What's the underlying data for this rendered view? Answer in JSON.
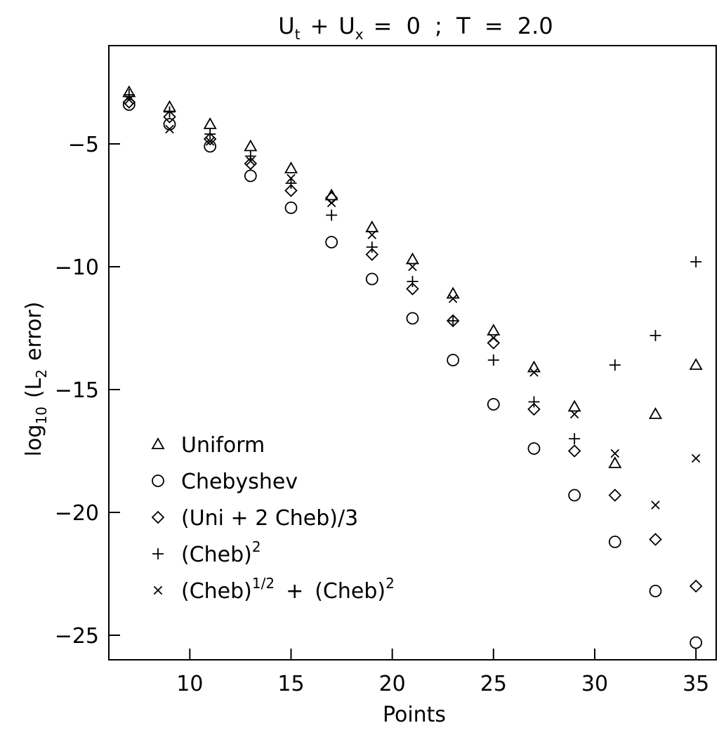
{
  "chart_data": {
    "type": "scatter",
    "title": {
      "u_main": "U",
      "u_sub_t": "t",
      "plus": "+",
      "u_main2": "U",
      "u_sub_x": "x",
      "rest": "= 0 ; T = 2.0"
    },
    "xlabel": "Points",
    "ylabel": {
      "pre": "log",
      "pre_sub": "10",
      "open": "(L",
      "l_sub": "2",
      "close": "error)"
    },
    "xlim": [
      6,
      36
    ],
    "ylim": [
      -26,
      -1
    ],
    "xticks": [
      10,
      15,
      20,
      25,
      30,
      35
    ],
    "yticks": [
      -5,
      -10,
      -15,
      -20,
      -25
    ],
    "x_tick_labels": [
      "10",
      "15",
      "20",
      "25",
      "30",
      "35"
    ],
    "y_tick_labels": [
      "-5",
      "-10",
      "-15",
      "-20",
      "-25"
    ],
    "legend_position": "bottom-left",
    "legend": {
      "uniform": "Uniform",
      "chebyshev": "Chebyshev",
      "mix": "(Uni + 2 Cheb)/3",
      "cheb2": {
        "a": "(Cheb)",
        "a_sup": "2"
      },
      "chebhalf": {
        "a": "(Cheb)",
        "a_sup": "1/2",
        "mid": "+",
        "b": "(Cheb)",
        "b_sup": "2"
      }
    },
    "x": [
      7,
      9,
      11,
      13,
      15,
      17,
      19,
      21,
      23,
      25,
      27,
      29,
      31,
      33,
      35
    ],
    "series": [
      {
        "key": "uniform",
        "marker": "triangle",
        "values": [
          -2.9,
          -3.5,
          -4.2,
          -5.1,
          -6.0,
          -7.1,
          -8.4,
          -9.7,
          -11.1,
          -12.6,
          -14.1,
          -15.7,
          -18.0,
          -16.0,
          -14.0
        ]
      },
      {
        "key": "chebyshev",
        "marker": "circle",
        "values": [
          -3.4,
          -4.2,
          -5.1,
          -6.3,
          -7.6,
          -9.0,
          -10.5,
          -12.1,
          -13.8,
          -15.6,
          -17.4,
          -19.3,
          -21.2,
          -23.2,
          -25.3
        ]
      },
      {
        "key": "mix",
        "marker": "diamond",
        "values": [
          -3.3,
          -3.9,
          -4.8,
          -5.8,
          -6.9,
          -7.2,
          -9.5,
          -10.9,
          -12.2,
          -13.1,
          -15.8,
          -17.5,
          -19.3,
          -21.1,
          -23.0
        ]
      },
      {
        "key": "cheb2",
        "marker": "plus",
        "values": [
          -3.0,
          -3.7,
          -4.6,
          -5.5,
          -6.6,
          -7.9,
          -9.2,
          -10.6,
          -12.2,
          -13.8,
          -15.5,
          -17.0,
          -14.0,
          -12.8,
          -9.8
        ]
      },
      {
        "key": "chebhalf",
        "marker": "cross",
        "values": [
          -3.2,
          -4.4,
          -4.9,
          -5.7,
          -6.4,
          -7.4,
          -8.7,
          -10.0,
          -11.3,
          -12.9,
          -14.3,
          -16.0,
          -17.6,
          -19.7,
          -17.8
        ]
      }
    ]
  }
}
